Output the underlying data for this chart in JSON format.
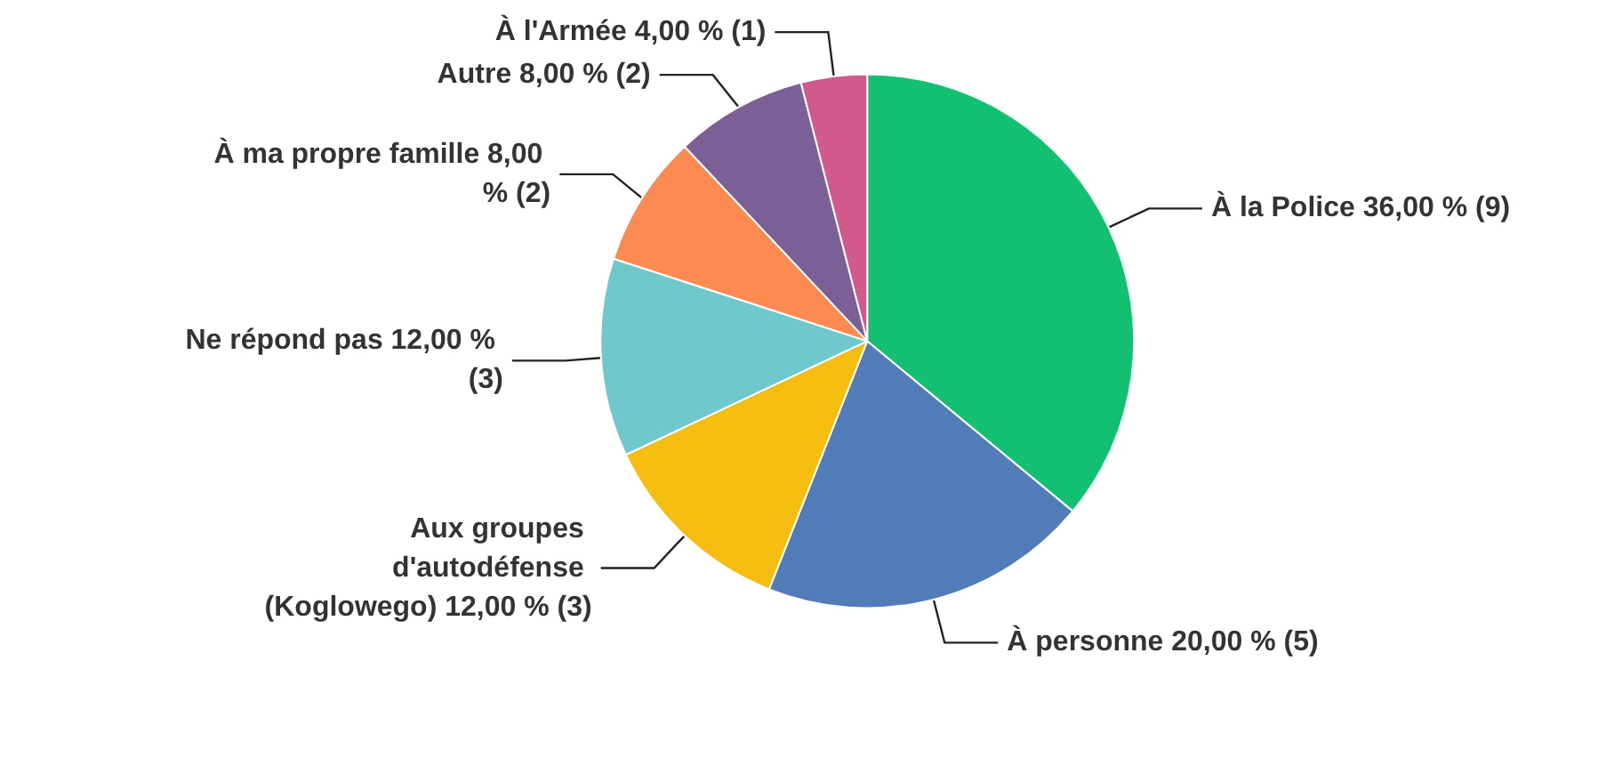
{
  "chart_data": {
    "type": "pie",
    "categories": [
      "À la Police",
      "À personne",
      "Aux groupes d'autodéfense (Koglowego)",
      "Ne répond pas",
      "À ma propre famille",
      "Autre",
      "À l'Armée"
    ],
    "values": [
      36,
      20,
      12,
      12,
      8,
      8,
      4
    ],
    "value_labels": [
      "36,00 % (9)",
      "20,00 % (5)",
      "12,00 % (3)",
      "12,00 % (3)",
      "8,00 % (2)",
      "8,00 % (2)",
      "4,00 % (1)"
    ],
    "colors": [
      "#13bf70",
      "#527cb8",
      "#f6bd11",
      "#6fc9cc",
      "#fd8a50",
      "#7c5f96",
      "#d2598c"
    ],
    "legend": false
  }
}
